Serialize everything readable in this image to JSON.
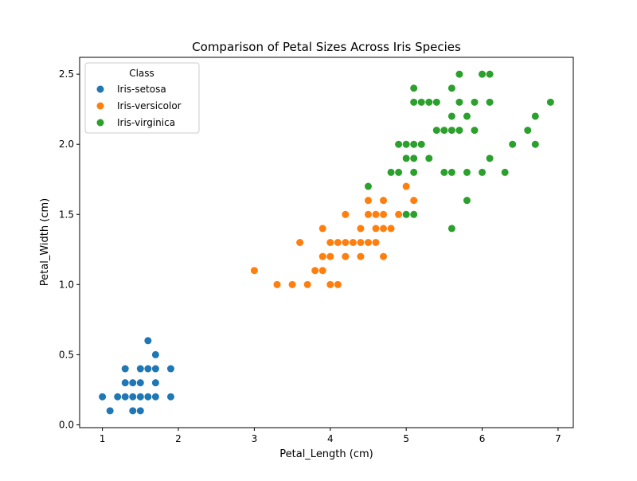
{
  "chart_data": {
    "type": "scatter",
    "title": "Comparison of Petal Sizes Across Iris Species",
    "xlabel": "Petal_Length (cm)",
    "ylabel": "Petal_Width (cm)",
    "xlim": [
      0.7,
      7.2
    ],
    "ylim": [
      -0.02,
      2.62
    ],
    "xticks": [
      1,
      2,
      3,
      4,
      5,
      6,
      7
    ],
    "yticks": [
      0.0,
      0.5,
      1.0,
      1.5,
      2.0,
      2.5
    ],
    "xtick_labels": [
      "1",
      "2",
      "3",
      "4",
      "5",
      "6",
      "7"
    ],
    "ytick_labels": [
      "0.0",
      "0.5",
      "1.0",
      "1.5",
      "2.0",
      "2.5"
    ],
    "grid": false,
    "legend": {
      "title": "Class",
      "placement": "top-left"
    },
    "series": [
      {
        "name": "Iris-setosa",
        "color": "#1f77b4",
        "points": [
          [
            1.0,
            0.2
          ],
          [
            1.1,
            0.1
          ],
          [
            1.2,
            0.2
          ],
          [
            1.3,
            0.2
          ],
          [
            1.3,
            0.3
          ],
          [
            1.3,
            0.4
          ],
          [
            1.4,
            0.1
          ],
          [
            1.4,
            0.2
          ],
          [
            1.4,
            0.3
          ],
          [
            1.5,
            0.1
          ],
          [
            1.5,
            0.2
          ],
          [
            1.5,
            0.3
          ],
          [
            1.5,
            0.4
          ],
          [
            1.6,
            0.2
          ],
          [
            1.6,
            0.4
          ],
          [
            1.6,
            0.6
          ],
          [
            1.7,
            0.2
          ],
          [
            1.7,
            0.3
          ],
          [
            1.7,
            0.4
          ],
          [
            1.7,
            0.5
          ],
          [
            1.9,
            0.2
          ],
          [
            1.9,
            0.4
          ]
        ]
      },
      {
        "name": "Iris-versicolor",
        "color": "#ff7f0e",
        "points": [
          [
            3.0,
            1.1
          ],
          [
            3.3,
            1.0
          ],
          [
            3.5,
            1.0
          ],
          [
            3.6,
            1.3
          ],
          [
            3.7,
            1.0
          ],
          [
            3.8,
            1.1
          ],
          [
            3.9,
            1.1
          ],
          [
            3.9,
            1.2
          ],
          [
            3.9,
            1.4
          ],
          [
            4.0,
            1.0
          ],
          [
            4.0,
            1.2
          ],
          [
            4.0,
            1.3
          ],
          [
            4.1,
            1.0
          ],
          [
            4.1,
            1.3
          ],
          [
            4.2,
            1.2
          ],
          [
            4.2,
            1.3
          ],
          [
            4.2,
            1.5
          ],
          [
            4.3,
            1.3
          ],
          [
            4.4,
            1.2
          ],
          [
            4.4,
            1.3
          ],
          [
            4.4,
            1.4
          ],
          [
            4.5,
            1.3
          ],
          [
            4.5,
            1.5
          ],
          [
            4.5,
            1.6
          ],
          [
            4.6,
            1.3
          ],
          [
            4.6,
            1.4
          ],
          [
            4.6,
            1.5
          ],
          [
            4.7,
            1.2
          ],
          [
            4.7,
            1.4
          ],
          [
            4.7,
            1.5
          ],
          [
            4.7,
            1.6
          ],
          [
            4.8,
            1.4
          ],
          [
            4.9,
            1.5
          ],
          [
            5.0,
            1.7
          ],
          [
            5.1,
            1.6
          ]
        ]
      },
      {
        "name": "Iris-virginica",
        "color": "#2ca02c",
        "points": [
          [
            4.5,
            1.7
          ],
          [
            4.8,
            1.8
          ],
          [
            4.9,
            1.8
          ],
          [
            4.9,
            2.0
          ],
          [
            5.0,
            1.5
          ],
          [
            5.0,
            1.9
          ],
          [
            5.0,
            2.0
          ],
          [
            5.1,
            1.5
          ],
          [
            5.1,
            1.8
          ],
          [
            5.1,
            1.9
          ],
          [
            5.1,
            2.0
          ],
          [
            5.1,
            2.3
          ],
          [
            5.1,
            2.4
          ],
          [
            5.2,
            2.0
          ],
          [
            5.2,
            2.3
          ],
          [
            5.3,
            1.9
          ],
          [
            5.3,
            2.3
          ],
          [
            5.4,
            2.1
          ],
          [
            5.4,
            2.3
          ],
          [
            5.5,
            1.8
          ],
          [
            5.5,
            2.1
          ],
          [
            5.6,
            1.4
          ],
          [
            5.6,
            1.8
          ],
          [
            5.6,
            2.1
          ],
          [
            5.6,
            2.2
          ],
          [
            5.6,
            2.4
          ],
          [
            5.7,
            2.1
          ],
          [
            5.7,
            2.3
          ],
          [
            5.7,
            2.5
          ],
          [
            5.8,
            1.6
          ],
          [
            5.8,
            1.8
          ],
          [
            5.8,
            2.2
          ],
          [
            5.9,
            2.1
          ],
          [
            5.9,
            2.3
          ],
          [
            6.0,
            1.8
          ],
          [
            6.0,
            2.5
          ],
          [
            6.1,
            1.9
          ],
          [
            6.1,
            2.3
          ],
          [
            6.1,
            2.5
          ],
          [
            6.3,
            1.8
          ],
          [
            6.4,
            2.0
          ],
          [
            6.6,
            2.1
          ],
          [
            6.7,
            2.0
          ],
          [
            6.7,
            2.2
          ],
          [
            6.9,
            2.3
          ]
        ]
      }
    ]
  }
}
